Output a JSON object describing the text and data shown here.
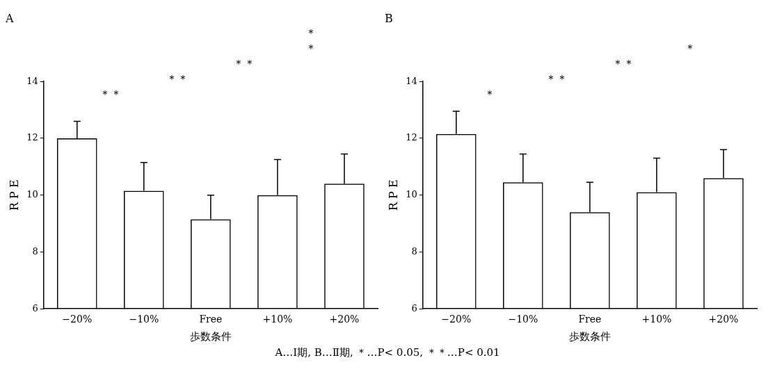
{
  "chart_data": [
    {
      "type": "bar",
      "title": "A",
      "xlabel": "歩数条件",
      "ylabel": "R P E",
      "categories": [
        "−20%",
        "−10%",
        "Free",
        "+10%",
        "+20%"
      ],
      "values": [
        12.0,
        10.15,
        9.15,
        10.0,
        10.4
      ],
      "errors": [
        0.6,
        1.0,
        0.85,
        1.25,
        1.05
      ],
      "color": "#000000",
      "ylim": [
        6,
        14
      ],
      "yticks": [
        6,
        8,
        10,
        12,
        14
      ],
      "grid": false,
      "annotations": [
        "＊＊",
        "＊＊",
        "＊＊",
        "＊",
        "＊"
      ]
    },
    {
      "type": "bar",
      "title": "B",
      "xlabel": "歩数条件",
      "ylabel": "R P E",
      "categories": [
        "−20%",
        "−10%",
        "Free",
        "+10%",
        "+20%"
      ],
      "values": [
        12.15,
        10.45,
        9.4,
        10.1,
        10.6
      ],
      "errors": [
        0.8,
        1.0,
        1.05,
        1.2,
        1.0
      ],
      "color": "#000000",
      "ylim": [
        6,
        14
      ],
      "yticks": [
        6,
        8,
        10,
        12,
        14
      ],
      "grid": false,
      "annotations": [
        "＊",
        "＊＊",
        "＊＊",
        "＊"
      ]
    },
    {
      "type": "other",
      "annotations": [
        "A…Ⅰ期, B…Ⅱ期, ＊…P< 0.05, ＊＊…P< 0.01"
      ]
    }
  ]
}
